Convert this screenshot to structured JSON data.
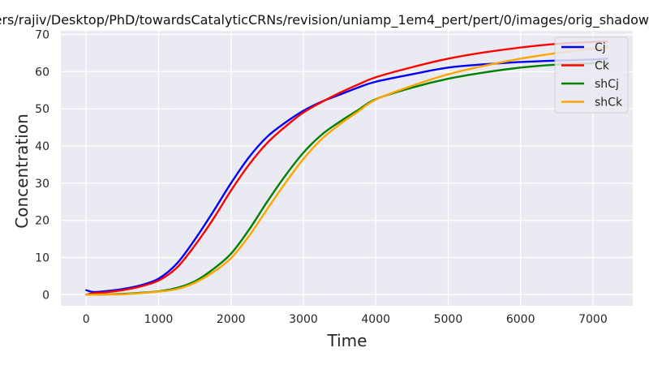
{
  "chart_data": {
    "type": "line",
    "title": "/Users/rajiv/Desktop/PhD/towardsCatalyticCRNs/revision/uniamp_1em4_pert/pert/0/images/orig_shadow_pert_ne",
    "xlabel": "Time",
    "ylabel": "Concentration",
    "xlim": [
      -350,
      7550
    ],
    "ylim": [
      -3,
      71
    ],
    "xticks": [
      0,
      1000,
      2000,
      3000,
      4000,
      5000,
      6000,
      7000
    ],
    "yticks": [
      0,
      10,
      20,
      30,
      40,
      50,
      60,
      70
    ],
    "grid": true,
    "legend_position": "upper right",
    "x": [
      0,
      100,
      250,
      500,
      750,
      1000,
      1250,
      1500,
      1750,
      2000,
      2250,
      2500,
      2750,
      3000,
      3250,
      3500,
      3750,
      4000,
      4500,
      5000,
      5500,
      6000,
      6500,
      7000,
      7200
    ],
    "series": [
      {
        "name": "Cj",
        "color": "#0000ff",
        "values": [
          1.2,
          0.7,
          0.9,
          1.5,
          2.5,
          4.3,
          8.3,
          14.8,
          22.2,
          30.0,
          37.0,
          42.5,
          46.3,
          49.5,
          51.9,
          53.8,
          55.7,
          57.3,
          59.3,
          61.1,
          62.0,
          62.6,
          63.0,
          63.3,
          63.5
        ]
      },
      {
        "name": "Ck",
        "color": "#ff0000",
        "values": [
          0.0,
          0.4,
          0.6,
          1.2,
          2.2,
          3.8,
          7.2,
          13.2,
          20.2,
          28.0,
          35.0,
          40.8,
          45.2,
          49.0,
          51.8,
          54.3,
          56.5,
          58.5,
          61.2,
          63.5,
          65.2,
          66.5,
          67.5,
          68.0,
          68.1
        ]
      },
      {
        "name": "shCj",
        "color": "#008000",
        "values": [
          0.0,
          0.0,
          0.05,
          0.2,
          0.5,
          0.9,
          1.8,
          3.6,
          6.8,
          11.0,
          17.5,
          25.0,
          32.0,
          38.2,
          43.0,
          46.5,
          49.6,
          52.6,
          55.7,
          58.1,
          59.8,
          61.1,
          61.9,
          62.3,
          62.5
        ]
      },
      {
        "name": "shCk",
        "color": "#ffa500",
        "values": [
          0.0,
          0.0,
          0.05,
          0.1,
          0.4,
          0.8,
          1.5,
          3.2,
          6.0,
          9.8,
          15.8,
          23.0,
          30.0,
          36.5,
          41.8,
          45.8,
          49.2,
          52.5,
          56.2,
          59.3,
          61.6,
          63.5,
          65.0,
          66.2,
          66.6
        ]
      }
    ]
  },
  "colors": {
    "plot_background": "#eaeaf2",
    "grid": "#ffffff",
    "text": "#262626"
  }
}
